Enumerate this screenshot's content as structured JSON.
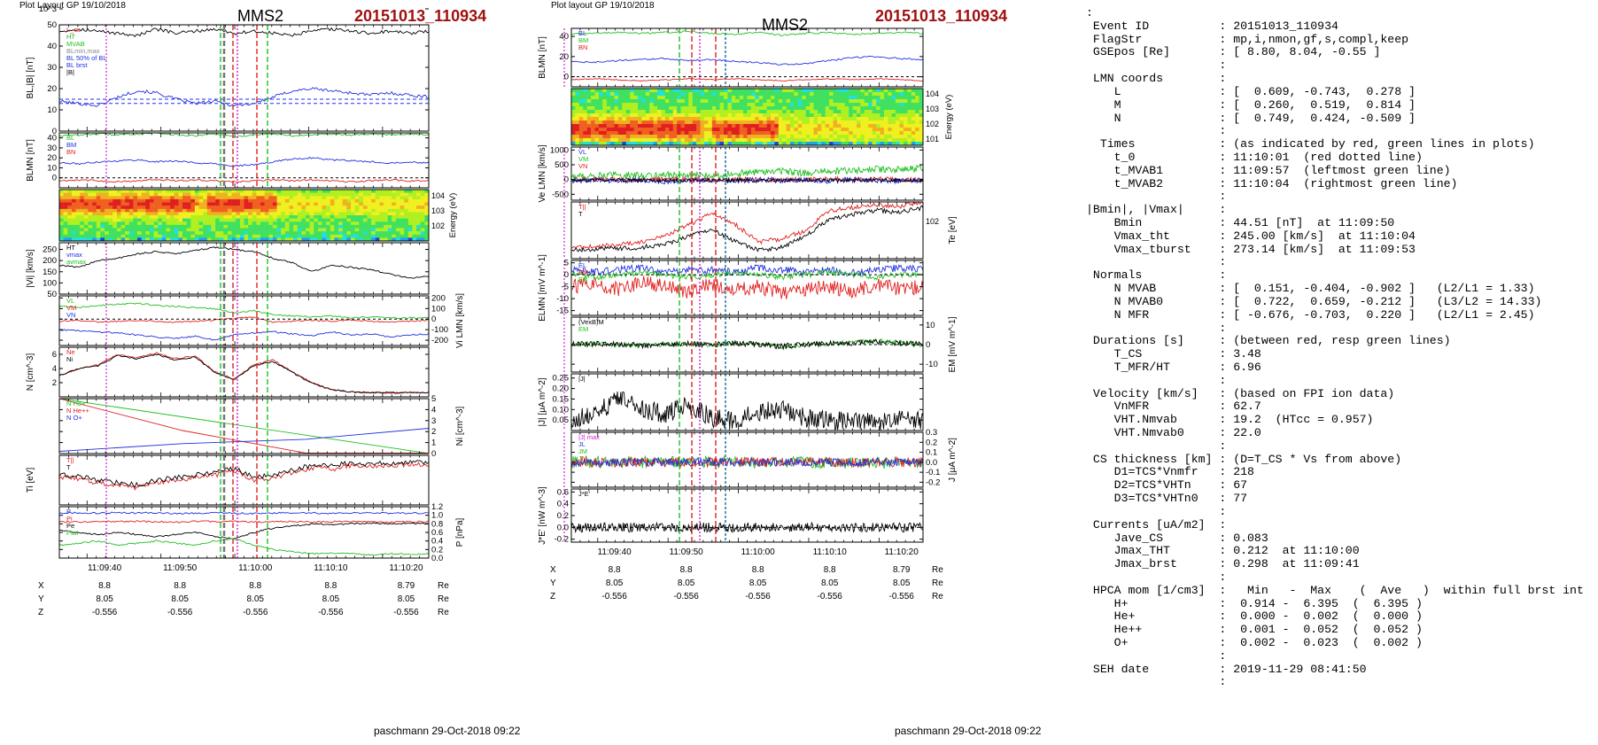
{
  "left": {
    "header_small": "Plot Layout GP 19/10/2018",
    "title": "MMS2",
    "event": "20151013_110934",
    "footer": "paschmann 29-Oct-2018 09:22",
    "tick_times": [
      "11:09:40",
      "11:09:50",
      "11:10:00",
      "11:10:10",
      "11:10:20"
    ],
    "pos_rows": [
      {
        "label": "X",
        "values": [
          "8.8",
          "8.8",
          "8.8",
          "8.8",
          "8.79"
        ],
        "unit": "Re"
      },
      {
        "label": "Y",
        "values": [
          "8.05",
          "8.05",
          "8.05",
          "8.05",
          "8.05"
        ],
        "unit": "Re"
      },
      {
        "label": "Z",
        "values": [
          "-0.556",
          "-0.556",
          "-0.556",
          "-0.556",
          "-0.556"
        ],
        "unit": "Re"
      }
    ]
  },
  "right": {
    "header_small": "Plot layout GP 19/10/2018",
    "title": "MMS2",
    "event": "20151013_110934",
    "footer": "paschmann 29-Oct-2018 09:22",
    "tick_times": [
      "11:09:40",
      "11:09:50",
      "11:10:00",
      "11:10:10",
      "11:10:20"
    ],
    "pos_rows": [
      {
        "label": "X",
        "values": [
          "8.8",
          "8.8",
          "8.8",
          "8.8",
          "8.79"
        ],
        "unit": "Re"
      },
      {
        "label": "Y",
        "values": [
          "8.05",
          "8.05",
          "8.05",
          "8.05",
          "8.05"
        ],
        "unit": "Re"
      },
      {
        "label": "Z",
        "values": [
          "-0.556",
          "-0.556",
          "-0.556",
          "-0.556",
          "-0.556"
        ],
        "unit": "Re"
      }
    ]
  },
  "info_lines": [
    ":",
    " Event ID          : 20151013_110934",
    " FlagStr           : mp,i,nmon,gf,s,compl,keep",
    " GSEpos [Re]       : [ 8.80, 8.04, -0.55 ]",
    "                   :",
    " LMN coords        :",
    "    L              : [  0.609, -0.743,  0.278 ]",
    "    M              : [  0.260,  0.519,  0.814 ]",
    "    N              : [  0.749,  0.424, -0.509 ]",
    "                   :",
    "  Times            : (as indicated by red, green lines in plots)",
    "    t_0            : 11:10:01  (red dotted line)",
    "    t_MVAB1        : 11:09:57  (leftmost green line)",
    "    t_MVAB2        : 11:10:04  (rightmost green line)",
    "                   :",
    "|Bmin|, |Vmax|     :",
    "    Bmin           : 44.51 [nT]  at 11:09:50",
    "    Vmax_tht       : 245.00 [km/s]  at 11:10:04",
    "    Vmax_tburst    : 273.14 [km/s]  at 11:09:53",
    "                   :",
    " Normals           :",
    "    N MVAB         : [  0.151, -0.404, -0.902 ]   (L2/L1 = 1.33)",
    "    N MVAB0        : [  0.722,  0.659, -0.212 ]   (L3/L2 = 14.33)",
    "    N MFR          : [ -0.676, -0.703,  0.220 ]   (L2/L1 = 2.45)",
    "                   :",
    " Durations [s]     : (between red, resp green lines)",
    "    T_CS           : 3.48",
    "    T_MFR/HT       : 6.96",
    "                   :",
    " Velocity [km/s]   : (based on FPI ion data)",
    "    VnMFR          : 62.7",
    "    VHT.Nmvab      : 19.2  (HTcc = 0.957)",
    "    VHT.Nmvab0     : 22.0",
    "                   :",
    " CS thickness [km] : (D=T_CS * Vs from above)",
    "    D1=TCS*Vnmfr   : 218",
    "    D2=TCS*VHTn    : 67",
    "    D3=TCS*VHTn0   : 77",
    "                   :",
    " Currents [uA/m2]  :",
    "    Jave_CS        : 0.083",
    "    Jmax_THT       : 0.212  at 11:10:00",
    "    Jmax_brst      : 0.298  at 11:09:41",
    "                   :",
    " HPCA mom [1/cm3]  :   Min   -  Max    (  Ave   )  within full brst int",
    "    H+             :  0.914 -  6.395  (  6.395 )",
    "    He+            :  0.000 -  0.002  (  0.000 )",
    "    He++           :  0.001 -  0.052  (  0.052 )",
    "    O+             :  0.002 -  0.023  (  0.002 )",
    "                   :",
    " SEH date          : 2019-11-29 08:41:50",
    "                   :"
  ],
  "colors": {
    "red": "#e02020",
    "green": "#20c020",
    "blue": "#2030e0",
    "black": "#000000",
    "magenta": "#d020d0",
    "title_red": "#a01010"
  },
  "chart_data": [
    {
      "type": "line",
      "panel": "left-1",
      "title": "",
      "ylabel": "BL,|B| [nT]",
      "ylim": [
        0,
        50
      ],
      "yticks": [
        "0",
        "10",
        "20",
        "30",
        "40",
        "50"
      ],
      "legend": [
        "L_cs",
        "HT",
        "MVAB",
        "BLmin,max",
        "BL 50% of BL",
        "BL brst",
        "|B|"
      ],
      "series": [
        {
          "name": "|B|",
          "color": "#000000",
          "values": [
            47,
            48,
            47,
            46,
            45,
            48,
            46,
            47,
            48,
            46,
            47,
            46,
            45,
            47,
            48,
            47,
            46,
            47,
            46,
            47
          ]
        },
        {
          "name": "BL brst",
          "color": "#2030e0",
          "values": [
            14,
            13,
            12,
            16,
            19,
            18,
            15,
            13,
            14,
            12,
            13,
            16,
            19,
            20,
            19,
            18,
            17,
            18,
            17,
            16
          ]
        }
      ],
      "reference_lines": [
        15,
        13
      ]
    },
    {
      "type": "line",
      "panel": "left-2",
      "ylabel": "BLMN [nT]",
      "ylim": [
        -10,
        45
      ],
      "yticks": [
        "0",
        "10",
        "20",
        "30",
        "40"
      ],
      "legend": [
        "BL",
        "BM",
        "BN"
      ],
      "series": [
        {
          "name": "BL",
          "color": "#20c020",
          "values": [
            42,
            43,
            44,
            43,
            44,
            45,
            43,
            42,
            44,
            41,
            43,
            44,
            42,
            43,
            44,
            43,
            44,
            43,
            44,
            43
          ]
        },
        {
          "name": "BM",
          "color": "#2030e0",
          "values": [
            15,
            14,
            16,
            17,
            18,
            16,
            17,
            15,
            14,
            12,
            13,
            16,
            19,
            20,
            18,
            17,
            16,
            15,
            16,
            15
          ]
        },
        {
          "name": "BN",
          "color": "#e02020",
          "values": [
            -3,
            -2,
            -3,
            -4,
            -3,
            -2,
            -3,
            -2,
            -3,
            -4,
            -3,
            -2,
            -3,
            -2,
            -3,
            -4,
            -3,
            -2,
            -3,
            -3
          ]
        }
      ]
    },
    {
      "type": "heatmap",
      "panel": "left-3",
      "ylabel": "Energy (eV)",
      "yticks": [
        "10^2",
        "10^3",
        "10^4"
      ]
    },
    {
      "type": "line",
      "panel": "left-4",
      "ylabel": "|Vi| [km/s]",
      "ylim": [
        50,
        280
      ],
      "yticks": [
        "50",
        "100",
        "150",
        "200",
        "250"
      ],
      "legend": [
        "HT",
        "vmax",
        "avmax"
      ],
      "series": [
        {
          "name": "|Vi|",
          "color": "#000000",
          "values": [
            180,
            170,
            200,
            210,
            230,
            240,
            230,
            245,
            260,
            250,
            240,
            210,
            190,
            150,
            180,
            170,
            160,
            140,
            120,
            130
          ]
        }
      ]
    },
    {
      "type": "line",
      "panel": "left-5",
      "ylabel": "Vi LMN [km/s]",
      "ylim": [
        -250,
        220
      ],
      "yticks": [
        "-200",
        "-100",
        "0",
        "100",
        "200"
      ],
      "legend": [
        "VL",
        "VM",
        "VN"
      ],
      "series": [
        {
          "name": "VL",
          "color": "#20c020",
          "values": [
            120,
            110,
            130,
            140,
            150,
            130,
            120,
            110,
            100,
            60,
            80,
            40,
            30,
            20,
            30,
            10,
            20,
            10,
            15,
            10
          ]
        },
        {
          "name": "VM",
          "color": "#e02020",
          "values": [
            -20,
            -10,
            -30,
            -20,
            -10,
            -20,
            -30,
            -20,
            -10,
            10,
            20,
            -30,
            -20,
            -10,
            -20,
            -10,
            -20,
            -30,
            -20,
            -10
          ]
        },
        {
          "name": "VN",
          "color": "#2030e0",
          "values": [
            -100,
            -110,
            -120,
            -130,
            -150,
            -170,
            -180,
            -160,
            -200,
            -150,
            -130,
            -120,
            -140,
            -160,
            -120,
            -150,
            -140,
            -170,
            -150,
            -140
          ]
        }
      ]
    },
    {
      "type": "line",
      "panel": "left-6",
      "ylabel": "N [cm^-3]",
      "ylim": [
        0,
        7
      ],
      "yticks": [
        "2",
        "4",
        "6"
      ],
      "legend": [
        "Ne",
        "Ni"
      ],
      "series": [
        {
          "name": "Ne",
          "color": "#e02020",
          "values": [
            3,
            4,
            4.5,
            6,
            5.5,
            6.2,
            5.4,
            5.8,
            3.5,
            2.5,
            4.5,
            5.2,
            3.5,
            2,
            1,
            0.7,
            0.6,
            0.6,
            0.6,
            0.6
          ]
        },
        {
          "name": "Ni",
          "color": "#000000",
          "values": [
            3,
            4,
            4.4,
            5.8,
            5.4,
            6,
            5.2,
            5.6,
            3.4,
            2.4,
            4.4,
            5,
            3.4,
            1.9,
            1,
            0.7,
            0.6,
            0.6,
            0.6,
            0.6
          ]
        }
      ]
    },
    {
      "type": "line",
      "panel": "left-7",
      "ylabel": "Ni [cm^-3]",
      "ylim": [
        0,
        5
      ],
      "yticks": [
        "0",
        "1",
        "2",
        "3",
        "4",
        "5"
      ],
      "legend": [
        "N He+",
        "N He++",
        "N O+"
      ],
      "series": [
        {
          "name": "N He+",
          "color": "#20c020",
          "values": [
            5,
            0.02
          ]
        },
        {
          "name": "N He++",
          "color": "#e02020",
          "values": [
            5.2,
            2.1,
            0.05,
            0.05
          ]
        },
        {
          "name": "N O+",
          "color": "#2030e0",
          "values": [
            0.2,
            0.9,
            1.3,
            2.3
          ]
        }
      ]
    },
    {
      "type": "line",
      "panel": "left-8",
      "ylabel": "Ti [eV]",
      "yticks": [
        "10^3"
      ],
      "legend": [
        "T||",
        "T"
      ],
      "series": [
        {
          "name": "T||",
          "color": "#e02020",
          "values": [
            0.55,
            0.52,
            0.45,
            0.4,
            0.35,
            0.45,
            0.5,
            0.55,
            0.6,
            0.7,
            0.5,
            0.55,
            0.65,
            0.75,
            0.72,
            0.8,
            0.78,
            0.8,
            0.82,
            0.8
          ]
        },
        {
          "name": "T",
          "color": "#000000",
          "values": [
            0.6,
            0.58,
            0.5,
            0.45,
            0.4,
            0.5,
            0.55,
            0.6,
            0.65,
            0.75,
            0.55,
            0.6,
            0.7,
            0.8,
            0.78,
            0.85,
            0.82,
            0.85,
            0.86,
            0.85
          ]
        }
      ]
    },
    {
      "type": "line",
      "panel": "left-9",
      "ylabel": "P [nPa]",
      "ylim": [
        0,
        1.2
      ],
      "yticks": [
        "0.0",
        "0.2",
        "0.4",
        "0.6",
        "0.8",
        "1.0",
        "1.2"
      ],
      "legend": [
        "P",
        "Pi",
        "Pe",
        "Ptot"
      ],
      "series": [
        {
          "name": "Ptot",
          "color": "#2030e0",
          "values": [
            1.05,
            1.06,
            1.05,
            1.06,
            1.05,
            1.06,
            1.04,
            1.05,
            1.06,
            1.05,
            1.04,
            1.05,
            1.06,
            1.05,
            1.04,
            1.05,
            1.06,
            1.05,
            1.05,
            1.05
          ]
        },
        {
          "name": "P",
          "color": "#e02020",
          "values": [
            0.85,
            0.84,
            0.86,
            0.85,
            0.86,
            0.85,
            0.84,
            0.86,
            0.85,
            0.86,
            0.84,
            0.86,
            0.85,
            0.84,
            0.85,
            0.86,
            0.85,
            0.84,
            0.85,
            0.85
          ]
        },
        {
          "name": "Pi",
          "color": "#000000",
          "values": [
            0.65,
            0.6,
            0.55,
            0.6,
            0.55,
            0.5,
            0.55,
            0.6,
            0.5,
            0.45,
            0.6,
            0.7,
            0.75,
            0.8,
            0.78,
            0.8,
            0.82,
            0.8,
            0.81,
            0.8
          ]
        },
        {
          "name": "Pe",
          "color": "#20c020",
          "values": [
            0.3,
            0.35,
            0.4,
            0.3,
            0.35,
            0.4,
            0.35,
            0.3,
            0.4,
            0.45,
            0.3,
            0.2,
            0.15,
            0.1,
            0.12,
            0.1,
            0.08,
            0.1,
            0.09,
            0.1
          ]
        }
      ]
    },
    {
      "type": "line",
      "panel": "right-1",
      "ylabel": "BLMN [nT]",
      "ylim": [
        -10,
        48
      ],
      "yticks": [
        "0",
        "20",
        "40"
      ],
      "legend": [
        "BL",
        "BM",
        "BN"
      ],
      "series": [
        {
          "name": "BL",
          "color": "#20c020",
          "values": [
            42,
            43,
            44,
            43,
            44,
            45,
            43,
            42,
            44,
            41,
            43,
            44,
            42,
            43,
            44,
            43,
            44,
            43,
            44,
            43
          ]
        },
        {
          "name": "BM",
          "color": "#2030e0",
          "values": [
            15,
            14,
            16,
            17,
            18,
            16,
            17,
            15,
            14,
            12,
            13,
            16,
            19,
            20,
            18,
            17,
            16,
            15,
            16,
            15
          ]
        },
        {
          "name": "BN",
          "color": "#e02020",
          "values": [
            -3,
            -2,
            -3,
            -4,
            -3,
            -2,
            -3,
            -2,
            -3,
            -4,
            -3,
            -2,
            -3,
            -2,
            -3,
            -4,
            -3,
            -2,
            -3,
            -3
          ]
        }
      ]
    },
    {
      "type": "heatmap",
      "panel": "right-2",
      "ylabel": "Energy (eV)",
      "yticks": [
        "10^1",
        "10^2",
        "10^3",
        "10^4"
      ]
    },
    {
      "type": "line",
      "panel": "right-3",
      "ylabel": "Ve LMN [km/s]",
      "ylim": [
        -700,
        1100
      ],
      "yticks": [
        "-500",
        "0",
        "500",
        "1000"
      ],
      "legend": [
        "VL",
        "VM",
        "VN"
      ]
    },
    {
      "type": "line",
      "panel": "right-4",
      "ylabel": "Te [eV]",
      "yticks": [
        "10^2"
      ],
      "legend": [
        "T||",
        "T"
      ]
    },
    {
      "type": "line",
      "panel": "right-5",
      "ylabel": "ELMN [mV m^-1]",
      "ylim": [
        -17,
        6
      ],
      "yticks": [
        "-15",
        "-10",
        "-5",
        "0",
        "5"
      ],
      "legend": [
        "EL",
        "EM",
        "EN"
      ]
    },
    {
      "type": "line",
      "panel": "right-6",
      "ylabel": "EM [mV m^-1]",
      "ylim": [
        -14,
        14
      ],
      "yticks": [
        "-10",
        "0",
        "10"
      ],
      "legend": [
        "(VexB)M",
        "EM"
      ]
    },
    {
      "type": "line",
      "panel": "right-7",
      "ylabel": "|J| [μA m^-2]",
      "ylim": [
        0,
        0.27
      ],
      "yticks": [
        "0.05",
        "0.10",
        "0.15",
        "0.20",
        "0.25"
      ],
      "legend": [
        "|J|"
      ]
    },
    {
      "type": "line",
      "panel": "right-8",
      "ylabel": "J [μA m^-2]",
      "ylim": [
        -0.25,
        0.3
      ],
      "yticks": [
        "-0.2",
        "-0.1",
        "0.0",
        "0.1",
        "0.2",
        "0.3"
      ],
      "legend": [
        "|J| max",
        "JL",
        "JM",
        "JN"
      ]
    },
    {
      "type": "line",
      "panel": "right-9",
      "ylabel": "J*E' [nW m^-3]",
      "ylim": [
        -0.25,
        0.65
      ],
      "yticks": [
        "-0.2",
        "0.0",
        "0.2",
        "0.4",
        "0.6"
      ],
      "legend": [
        "J*E'"
      ]
    }
  ]
}
